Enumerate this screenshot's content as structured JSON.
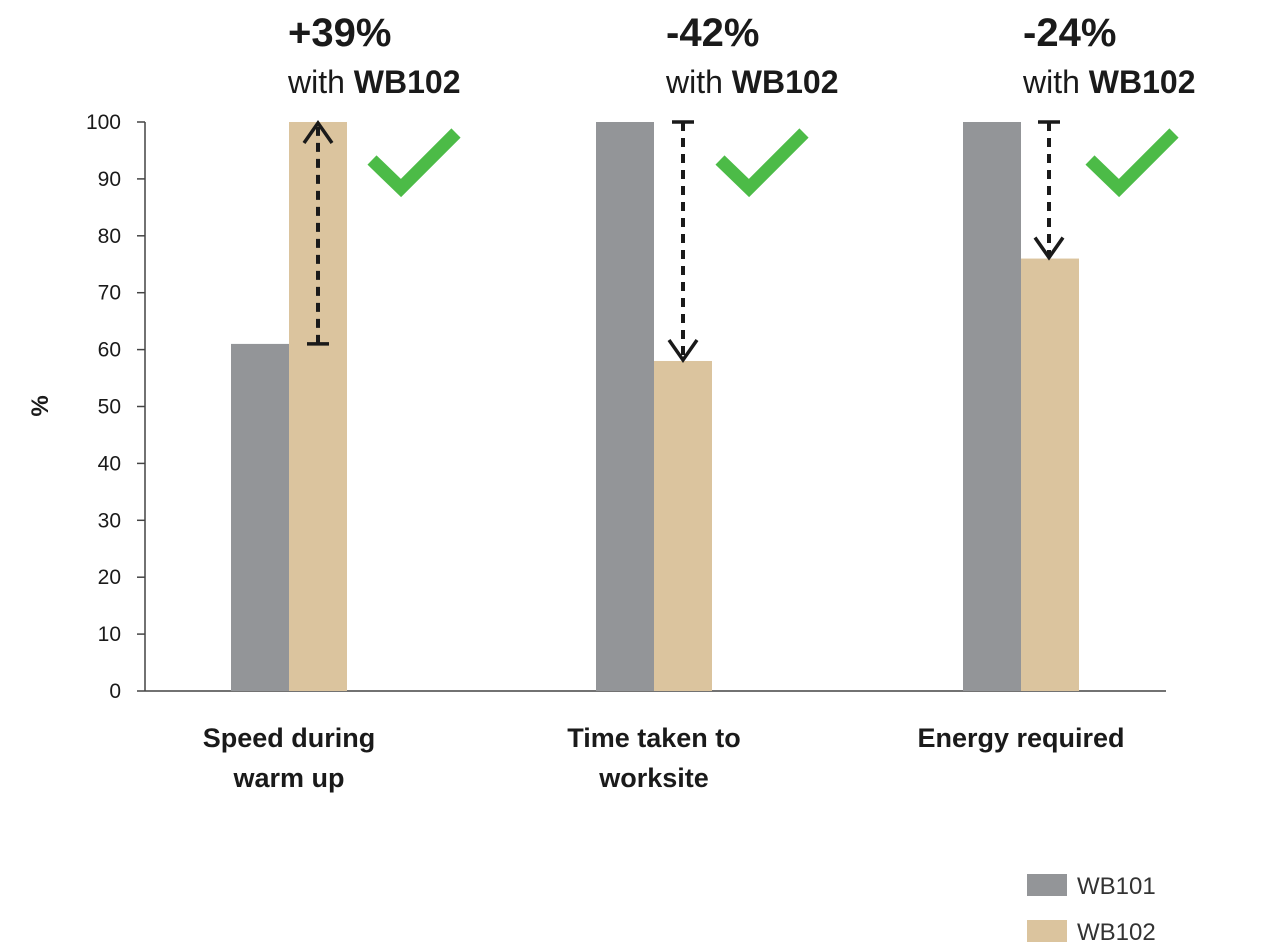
{
  "chart_data": {
    "type": "bar",
    "ylabel": "%",
    "ylim": [
      0,
      100
    ],
    "yticks": [
      "0",
      "10",
      "20",
      "30",
      "40",
      "50",
      "60",
      "70",
      "80",
      "90",
      "100"
    ],
    "categories": [
      [
        "Speed during",
        "warm up"
      ],
      [
        "Time taken to",
        "worksite"
      ],
      [
        "Energy required"
      ]
    ],
    "series": [
      {
        "name": "WB101",
        "color": "#939598",
        "values": [
          61,
          100,
          100
        ]
      },
      {
        "name": "WB102",
        "color": "#dbc49e",
        "values": [
          100,
          58,
          76
        ]
      }
    ],
    "annotations": [
      {
        "change": "+39%",
        "with_text": "with ",
        "brand": "WB102",
        "direction": "up"
      },
      {
        "change": "-42%",
        "with_text": "with ",
        "brand": "WB102",
        "direction": "down"
      },
      {
        "change": "-24%",
        "with_text": "with ",
        "brand": "WB102",
        "direction": "down"
      }
    ],
    "icons": {
      "checkmark": "checkmark-icon",
      "checkmark_color": "#4cbb47"
    },
    "grid": false,
    "legend_position": "bottom-right"
  }
}
